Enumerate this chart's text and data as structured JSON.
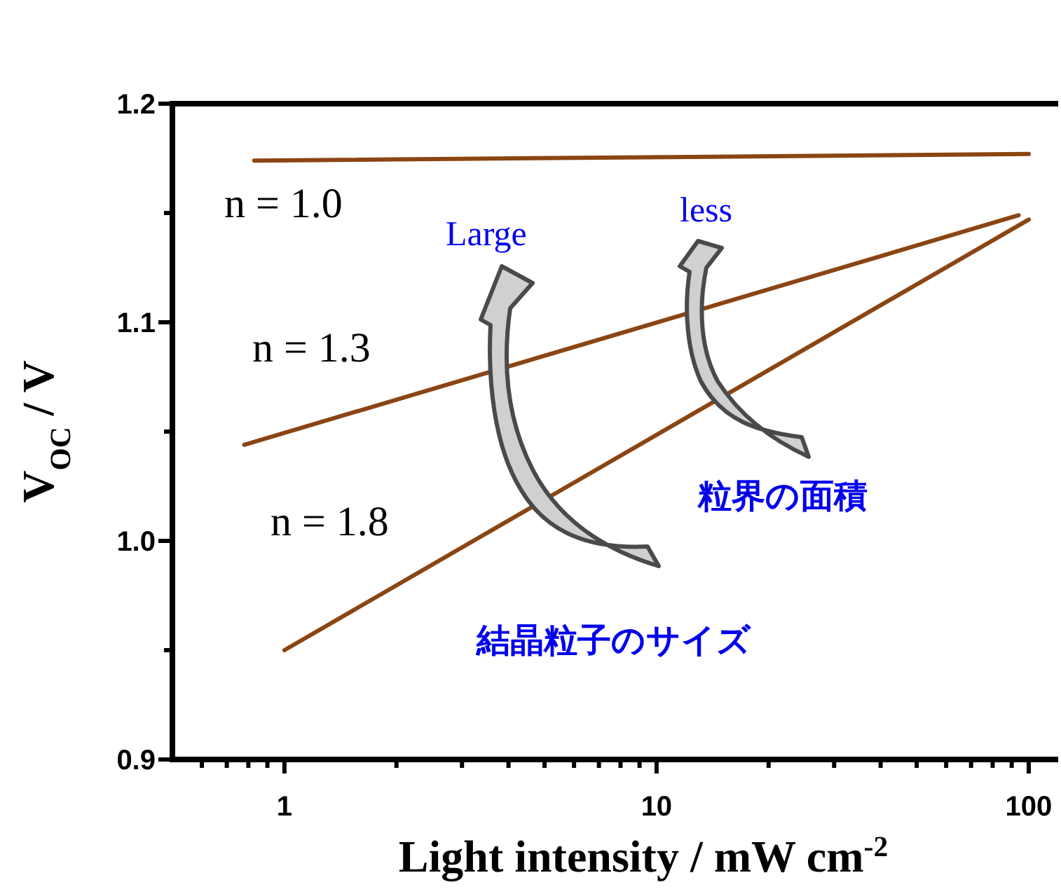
{
  "chart_data": {
    "type": "line",
    "xlabel": "Light intensity / mW cm$^{-2}$",
    "ylabel": "V$_{OC}$ / V",
    "series": [
      {
        "name": "n = 1.0",
        "color": "#8b4513",
        "x": [
          0.83,
          100
        ],
        "values": [
          1.174,
          1.177
        ]
      },
      {
        "name": "n = 1.3",
        "color": "#8b4513",
        "x": [
          0.78,
          94
        ],
        "values": [
          1.044,
          1.149
        ]
      },
      {
        "name": "n = 1.8",
        "color": "#8b4513",
        "x": [
          1.0,
          100
        ],
        "values": [
          0.95,
          1.147
        ]
      }
    ],
    "log": "x",
    "xlim": [
      0.5,
      120
    ],
    "ylim": [
      0.9,
      1.2
    ],
    "xticks": [
      1,
      10,
      100
    ],
    "yticks": [
      0.9,
      {
        "value": 1.0,
        "label": "1.0"
      },
      1.1,
      1.2
    ],
    "annotations": [
      "Large",
      "less",
      "粒界の面積",
      "結晶粒子のサイズ"
    ],
    "marker": "none",
    "line_style": "solid",
    "grid": false
  }
}
